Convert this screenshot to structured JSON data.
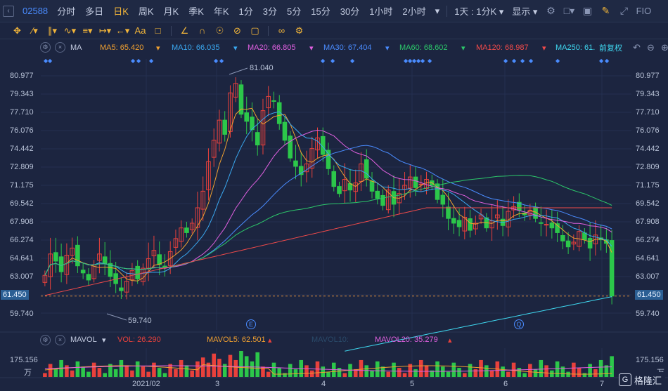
{
  "topbar": {
    "symbol": "02588",
    "tabs": [
      "分时",
      "多日",
      "日K",
      "周K",
      "月K",
      "季K",
      "年K",
      "1分",
      "3分",
      "5分",
      "15分",
      "30分",
      "1小时",
      "2小时"
    ],
    "active_tab": "日K",
    "period_dropdown": "1天 : 1分K",
    "display_dropdown": "显示",
    "fio_label": "FIO"
  },
  "ma_row": {
    "label": "MA",
    "ma5": "MA5: 65.420",
    "ma10": "MA10: 66.035",
    "ma20": "MA20: 66.805",
    "ma30": "MA30: 67.404",
    "ma60": "MA60: 68.602",
    "ma120": "MA120: 68.987",
    "ma250": "MA250: 61.",
    "adjust": "前复权"
  },
  "vol_row": {
    "label": "MAVOL",
    "vol": "VOL: 26.290",
    "mavol5": "MAVOL5: 62.501",
    "mavol10": "MAVOL10:",
    "mavol20": "MAVOL20: 35.279"
  },
  "colors": {
    "up": "#e8413c",
    "down": "#2cc74a",
    "ma5": "#f0a030",
    "ma10": "#3aa8f0",
    "ma20": "#e060e0",
    "ma30": "#4a8cff",
    "ma60": "#2cc76a",
    "ma120": "#f04a4a",
    "ma250": "#3fd8f0"
  },
  "y_axis_labels": [
    "80.977",
    "79.343",
    "77.710",
    "76.076",
    "74.442",
    "72.809",
    "71.175",
    "69.542",
    "67.908",
    "66.274",
    "64.641",
    "63.007",
    "59.740"
  ],
  "current_price": "61.450",
  "vol_axis": {
    "top": "175.156",
    "unit": "万"
  },
  "annotations": {
    "high": "81.040",
    "low": "59.740",
    "event_e": "E",
    "event_q": "Q"
  },
  "x_labels": [
    "2021/02",
    "3",
    "4",
    "5",
    "6",
    "7"
  ],
  "logo": {
    "mark": "G",
    "text": "格隆汇"
  },
  "chart_data": {
    "type": "candlestick",
    "ylim": [
      59.3,
      81.7
    ],
    "x": [
      "2021/02",
      "3",
      "4",
      "5",
      "6",
      "7"
    ],
    "close_series": [
      63.2,
      65.0,
      64.4,
      63.5,
      64.9,
      65.5,
      64.0,
      63.4,
      62.8,
      64.1,
      65.0,
      64.2,
      63.1,
      62.5,
      61.9,
      62.7,
      63.6,
      62.9,
      63.8,
      64.6,
      65.3,
      64.1,
      63.9,
      65.2,
      66.3,
      67.2,
      66.8,
      67.6,
      68.9,
      70.3,
      72.8,
      74.6,
      76.3,
      75.1,
      78.6,
      79.4,
      76.8,
      76.2,
      75.5,
      74.2,
      77.1,
      78.3,
      77.9,
      76.0,
      74.6,
      73.1,
      72.4,
      71.7,
      72.6,
      73.9,
      74.8,
      73.4,
      72.2,
      70.7,
      70.1,
      71.3,
      70.4,
      71.0,
      72.6,
      71.4,
      70.3,
      69.7,
      69.1,
      70.4,
      69.2,
      70.1,
      70.8,
      71.5,
      70.6,
      70.9,
      71.3,
      70.8,
      69.6,
      69.2,
      68.0,
      67.6,
      67.3,
      68.1,
      67.0,
      67.6,
      68.3,
      67.2,
      67.8,
      68.3,
      67.4,
      68.6,
      69.0,
      68.7,
      68.3,
      68.7,
      68.0,
      67.6,
      67.5,
      67.2,
      66.8,
      66.1,
      65.6,
      66.0,
      66.9,
      66.2,
      65.5,
      66.6,
      66.2,
      65.9,
      61.45
    ]
  }
}
